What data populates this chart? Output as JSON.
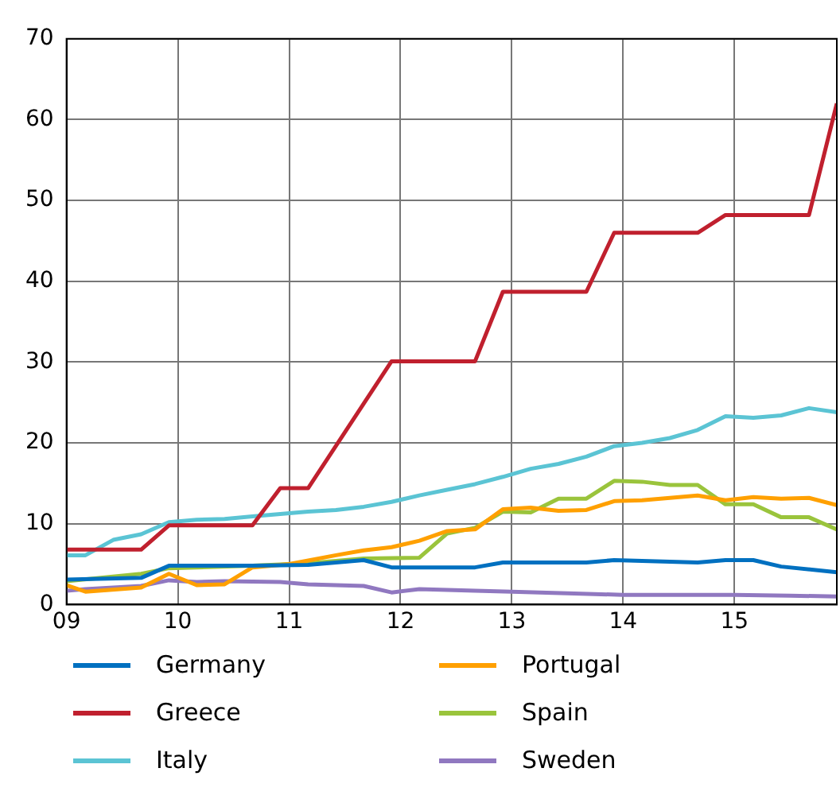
{
  "chart_data": {
    "type": "line",
    "xlim": [
      9,
      15.92
    ],
    "xticks": [
      {
        "value": 9,
        "label": "09"
      },
      {
        "value": 10,
        "label": "10"
      },
      {
        "value": 11,
        "label": "11"
      },
      {
        "value": 12,
        "label": "12"
      },
      {
        "value": 13,
        "label": "13"
      },
      {
        "value": 14,
        "label": "14"
      },
      {
        "value": 15,
        "label": "15"
      }
    ],
    "ylim": [
      0,
      70
    ],
    "yticks": [
      0,
      10,
      20,
      30,
      40,
      50,
      60,
      70
    ],
    "grid": true,
    "legend": "bottom",
    "marker": "none",
    "line_style": "solid",
    "series": [
      {
        "name": "Germany",
        "color": "#0070c0",
        "x": [
          9,
          9.67,
          9.92,
          10.67,
          11.17,
          11.67,
          11.92,
          12.67,
          12.92,
          13.67,
          13.92,
          14.67,
          14.92,
          15.17,
          15.42,
          15.92
        ],
        "values": [
          3.1,
          3.3,
          4.8,
          4.8,
          4.9,
          5.5,
          4.6,
          4.6,
          5.2,
          5.2,
          5.5,
          5.2,
          5.5,
          5.5,
          4.7,
          4.0
        ]
      },
      {
        "name": "Greece",
        "color": "#c0202e",
        "x": [
          9,
          9.67,
          9.92,
          10.67,
          10.92,
          11.17,
          11.92,
          12.67,
          12.92,
          13.67,
          13.92,
          14.67,
          14.92,
          15.67,
          15.92
        ],
        "values": [
          6.8,
          6.8,
          9.8,
          9.8,
          14.4,
          14.4,
          30.1,
          30.1,
          38.7,
          38.7,
          46,
          46,
          48.2,
          48.2,
          62
        ]
      },
      {
        "name": "Italy",
        "color": "#5bc4d4",
        "x": [
          9,
          9.17,
          9.42,
          9.67,
          9.92,
          10.17,
          10.42,
          10.67,
          10.92,
          11.17,
          11.42,
          11.67,
          11.92,
          12.17,
          12.42,
          12.67,
          12.92,
          13.17,
          13.42,
          13.67,
          13.92,
          14.17,
          14.42,
          14.67,
          14.92,
          15.17,
          15.42,
          15.67,
          15.92
        ],
        "values": [
          6.1,
          6.1,
          8,
          8.7,
          10.2,
          10.5,
          10.6,
          10.9,
          11.2,
          11.5,
          11.7,
          12.1,
          12.7,
          13.5,
          14.2,
          14.9,
          15.8,
          16.8,
          17.4,
          18.3,
          19.6,
          20,
          20.6,
          21.6,
          23.3,
          23.1,
          23.4,
          24.3,
          23.8
        ]
      },
      {
        "name": "Portugal",
        "color": "#ffa000",
        "x": [
          9,
          9.17,
          9.67,
          9.92,
          10.17,
          10.42,
          10.67,
          11,
          11.42,
          11.67,
          11.92,
          12.17,
          12.42,
          12.67,
          12.92,
          13.17,
          13.42,
          13.67,
          13.92,
          14.17,
          14.42,
          14.67,
          14.92,
          15.17,
          15.42,
          15.67,
          15.92
        ],
        "values": [
          2.4,
          1.6,
          2.1,
          3.8,
          2.4,
          2.5,
          4.6,
          5.0,
          6.1,
          6.7,
          7.1,
          7.9,
          9.1,
          9.3,
          11.8,
          12.0,
          11.6,
          11.7,
          12.8,
          12.9,
          13.2,
          13.5,
          12.9,
          13.3,
          13.1,
          13.2,
          12.3
        ]
      },
      {
        "name": "Spain",
        "color": "#9ac43c",
        "x": [
          9,
          9.67,
          9.92,
          10.67,
          11.17,
          11.67,
          12.17,
          12.42,
          12.67,
          12.92,
          13.17,
          13.42,
          13.67,
          13.92,
          14.17,
          14.42,
          14.67,
          14.92,
          15.17,
          15.42,
          15.67,
          15.92
        ],
        "values": [
          2.9,
          3.8,
          4.5,
          4.8,
          5.1,
          5.7,
          5.8,
          8.8,
          9.5,
          11.5,
          11.4,
          13.1,
          13.1,
          15.3,
          15.2,
          14.8,
          14.8,
          12.4,
          12.4,
          10.8,
          10.8,
          9.3
        ]
      },
      {
        "name": "Sweden",
        "color": "#9078c0",
        "x": [
          9,
          9.17,
          9.67,
          9.92,
          10.17,
          10.42,
          10.92,
          11.17,
          11.67,
          11.92,
          12.17,
          12.67,
          13,
          13.5,
          14,
          14.5,
          15,
          15.5,
          15.92
        ],
        "values": [
          1.7,
          1.9,
          2.3,
          3.0,
          2.8,
          2.9,
          2.8,
          2.5,
          2.3,
          1.5,
          1.9,
          1.7,
          1.6,
          1.4,
          1.2,
          1.2,
          1.2,
          1.1,
          1.0
        ]
      }
    ]
  }
}
